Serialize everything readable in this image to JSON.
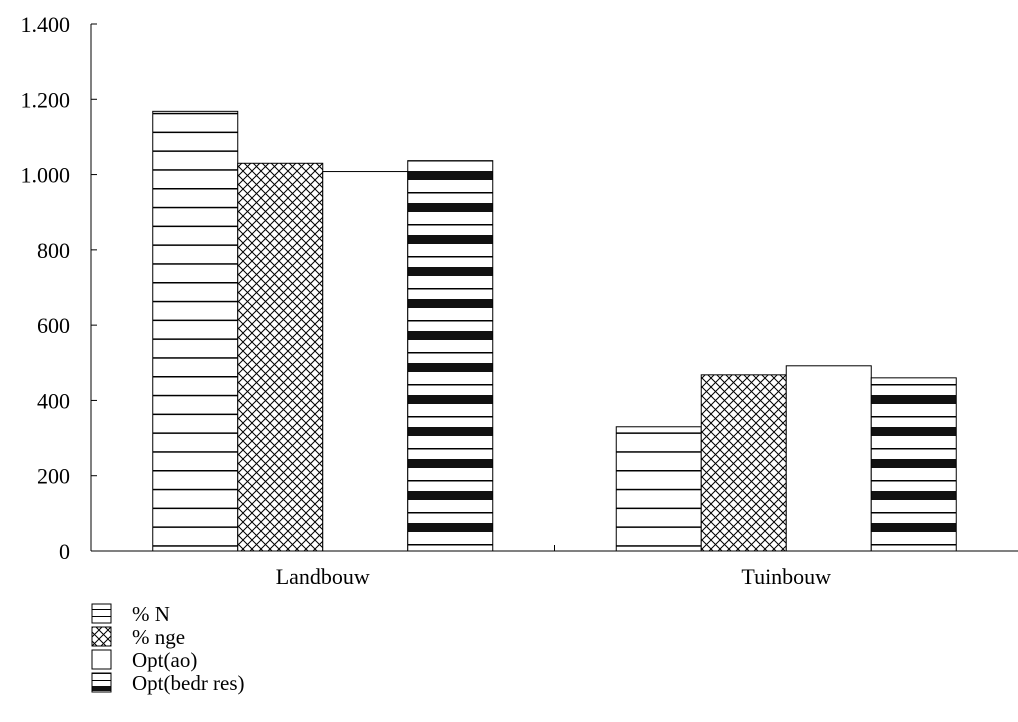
{
  "chart_data": {
    "type": "bar",
    "categories": [
      "Landbouw",
      "Tuinbouw"
    ],
    "series": [
      {
        "name": "% N",
        "values": [
          1168,
          330
        ],
        "pattern": "horizontal-thin"
      },
      {
        "name": "% nge",
        "values": [
          1030,
          468
        ],
        "pattern": "crosshatch"
      },
      {
        "name": "Opt(ao)",
        "values": [
          1008,
          492
        ],
        "pattern": "none"
      },
      {
        "name": "Opt(bedr res)",
        "values": [
          1037,
          460
        ],
        "pattern": "horizontal-thick"
      }
    ],
    "ylim": [
      0,
      1400
    ],
    "yticks": [
      0,
      200,
      400,
      600,
      800,
      1000,
      1200,
      1400
    ],
    "ytick_labels": [
      "0",
      "200",
      "400",
      "600",
      "800",
      "1.000",
      "1.200",
      "1.400"
    ],
    "grid": false,
    "legend_position": "bottom-left",
    "colors": {
      "fill": "#ffffff",
      "stroke": "#000000",
      "thick_stripe": "#111111"
    }
  }
}
